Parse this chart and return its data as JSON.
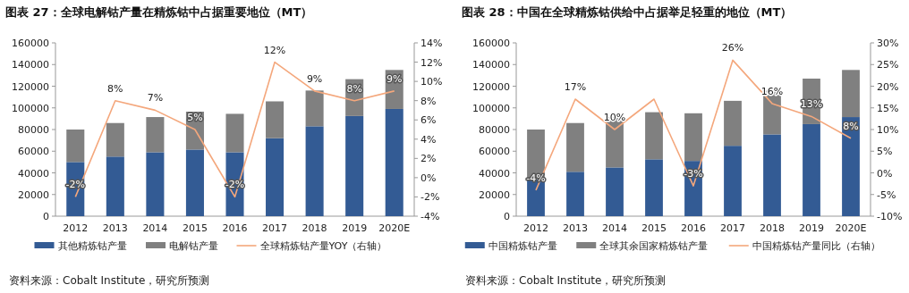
{
  "chart_data": [
    {
      "type": "bar",
      "stacked": true,
      "title": "图表 27：全球电解钴产量在精炼钴中占据重要地位（MT）",
      "categories": [
        "2012",
        "2013",
        "2014",
        "2015",
        "2016",
        "2017",
        "2018",
        "2019",
        "2020E"
      ],
      "series": [
        {
          "name": "其他精炼钴产量",
          "color": "#335b94",
          "values": [
            50000,
            55000,
            59000,
            61500,
            59000,
            72000,
            83000,
            92500,
            99000
          ]
        },
        {
          "name": "电解钴产量",
          "color": "#808080",
          "values": [
            30000,
            31000,
            32500,
            35000,
            35500,
            34000,
            33000,
            34000,
            36000
          ]
        },
        {
          "name": "全球精炼钴产量YOY（右轴）",
          "type": "line",
          "axis": "y2",
          "color": "#f4a77c",
          "values": [
            -2,
            8,
            7,
            5,
            -2,
            12,
            9,
            8,
            9
          ],
          "value_labels": [
            "-2%",
            "8%",
            "7%",
            "5%",
            "-2%",
            "12%",
            "9%",
            "8%",
            "9%"
          ]
        }
      ],
      "ylim": [
        0,
        160000
      ],
      "yticks": [
        0,
        20000,
        40000,
        60000,
        80000,
        100000,
        120000,
        140000,
        160000
      ],
      "y2lim": [
        -4,
        14
      ],
      "y2ticks": [
        {
          "value": -4,
          "label": "-4%"
        },
        {
          "value": -2,
          "label": "-2%"
        },
        {
          "value": 0,
          "label": "0%"
        },
        {
          "value": 2,
          "label": "2%"
        },
        {
          "value": 4,
          "label": "4%"
        },
        {
          "value": 6,
          "label": "6%"
        },
        {
          "value": 8,
          "label": "8%"
        },
        {
          "value": 10,
          "label": "10%"
        },
        {
          "value": 12,
          "label": "12%"
        },
        {
          "value": 14,
          "label": "14%"
        }
      ],
      "legend": "bottom",
      "grid": false,
      "annotations": [
        "资料来源：Cobalt Institute，研究所预测"
      ]
    },
    {
      "type": "bar",
      "stacked": true,
      "title": "图表 28：中国在全球精炼钴供给中占据举足轻重的地位（MT）",
      "categories": [
        "2012",
        "2013",
        "2014",
        "2015",
        "2016",
        "2017",
        "2018",
        "2019",
        "2020E"
      ],
      "series": [
        {
          "name": "中国精炼钴产量",
          "color": "#335b94",
          "values": [
            34000,
            41000,
            45000,
            52500,
            51000,
            65000,
            75500,
            85000,
            91500
          ]
        },
        {
          "name": "全球其余国家精炼钴产量",
          "color": "#808080",
          "values": [
            46000,
            45000,
            46500,
            43500,
            44000,
            41500,
            40500,
            42000,
            43500
          ]
        },
        {
          "name": "中国精炼钴产量同比（右轴）",
          "type": "line",
          "axis": "y2",
          "color": "#f4a77c",
          "values": [
            -4,
            17,
            10,
            17,
            -3,
            26,
            16,
            13,
            8
          ],
          "value_labels": [
            "-4%",
            "17%",
            "10%",
            null,
            "-3%",
            "26%",
            "16%",
            "13%",
            "8%"
          ]
        }
      ],
      "ylim": [
        0,
        160000
      ],
      "yticks": [
        0,
        20000,
        40000,
        60000,
        80000,
        100000,
        120000,
        140000,
        160000
      ],
      "y2lim": [
        -10,
        30
      ],
      "y2ticks": [
        {
          "value": -10,
          "label": "-10%"
        },
        {
          "value": -5,
          "label": "-5%"
        },
        {
          "value": 0,
          "label": "0%"
        },
        {
          "value": 5,
          "label": "5%"
        },
        {
          "value": 10,
          "label": "10%"
        },
        {
          "value": 15,
          "label": "15%"
        },
        {
          "value": 20,
          "label": "20%"
        },
        {
          "value": 25,
          "label": "25%"
        },
        {
          "value": 30,
          "label": "30%"
        }
      ],
      "legend": "bottom",
      "grid": false,
      "annotations": [
        "资料来源：Cobalt Institute，研究所预测"
      ]
    }
  ]
}
